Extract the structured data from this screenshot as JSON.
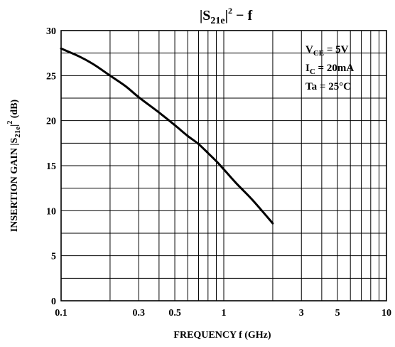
{
  "chart_data": {
    "type": "line",
    "title": {
      "prefix": "|S",
      "sub": "21e",
      "mid": "|",
      "sup": "2",
      "suffix": " − f"
    },
    "xlabel": "FREQUENCY  f  (GHz)",
    "ylabel": {
      "main": "INSERTION GAIN  |S",
      "sub": "21e",
      "mid": "|",
      "sup": "2",
      "unit": "  (dB)"
    },
    "x_scale": "log",
    "xlim": [
      0.1,
      10
    ],
    "ylim": [
      0,
      30
    ],
    "x_tick_labels": [
      "0.1",
      "0.3",
      "0.5",
      "1",
      "3",
      "5",
      "10"
    ],
    "x_tick_values": [
      0.1,
      0.3,
      0.5,
      1,
      3,
      5,
      10
    ],
    "y_tick_labels": [
      "0",
      "5",
      "10",
      "15",
      "20",
      "25",
      "30"
    ],
    "y_tick_values": [
      0,
      5,
      10,
      15,
      20,
      25,
      30
    ],
    "grid": true,
    "conditions": [
      {
        "main": "V",
        "sub": "CE",
        "rest": " = 5V"
      },
      {
        "main": "I",
        "sub": "C",
        "rest": " = 20mA"
      },
      {
        "main": "Ta",
        "sub": "",
        "rest": " = 25°C"
      }
    ],
    "series": [
      {
        "x": [
          0.1,
          0.13,
          0.16,
          0.2,
          0.25,
          0.3,
          0.4,
          0.5,
          0.6,
          0.7,
          0.8,
          0.9,
          1.0,
          1.2,
          1.5,
          2.0
        ],
        "y": [
          28.0,
          27.1,
          26.2,
          25.0,
          23.8,
          22.6,
          20.9,
          19.5,
          18.3,
          17.4,
          16.4,
          15.5,
          14.6,
          13.0,
          11.2,
          8.6
        ]
      }
    ]
  }
}
